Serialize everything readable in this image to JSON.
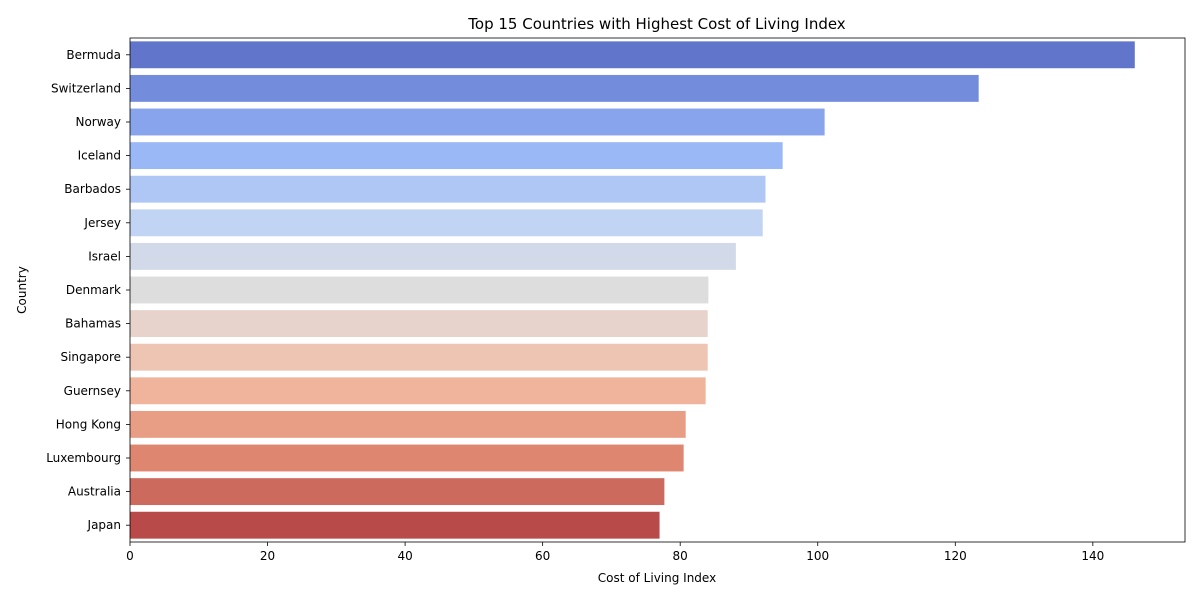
{
  "chart_data": {
    "type": "bar",
    "orientation": "horizontal",
    "title": "Top 15 Countries with Highest Cost of Living Index",
    "xlabel": "Cost of Living Index",
    "ylabel": "Country",
    "xlim": [
      0,
      153.4
    ],
    "xticks": [
      0,
      20,
      40,
      60,
      80,
      100,
      120,
      140
    ],
    "grid": false,
    "categories": [
      "Bermuda",
      "Switzerland",
      "Norway",
      "Iceland",
      "Barbados",
      "Jersey",
      "Israel",
      "Denmark",
      "Bahamas",
      "Singapore",
      "Guernsey",
      "Hong Kong",
      "Luxembourg",
      "Australia",
      "Japan"
    ],
    "values": [
      146.1,
      123.4,
      101.0,
      94.9,
      92.4,
      92.0,
      88.1,
      84.1,
      84.0,
      84.0,
      83.7,
      80.8,
      80.5,
      77.7,
      77.0
    ],
    "colors": [
      "#6175cb",
      "#748cdc",
      "#88a4ec",
      "#9bb8f6",
      "#afc7f5",
      "#c2d4f3",
      "#d2daea",
      "#dddddd",
      "#e7d3cb",
      "#eec4b3",
      "#f0b39b",
      "#e89e85",
      "#de8670",
      "#cc6a5e",
      "#b84a4a"
    ]
  }
}
